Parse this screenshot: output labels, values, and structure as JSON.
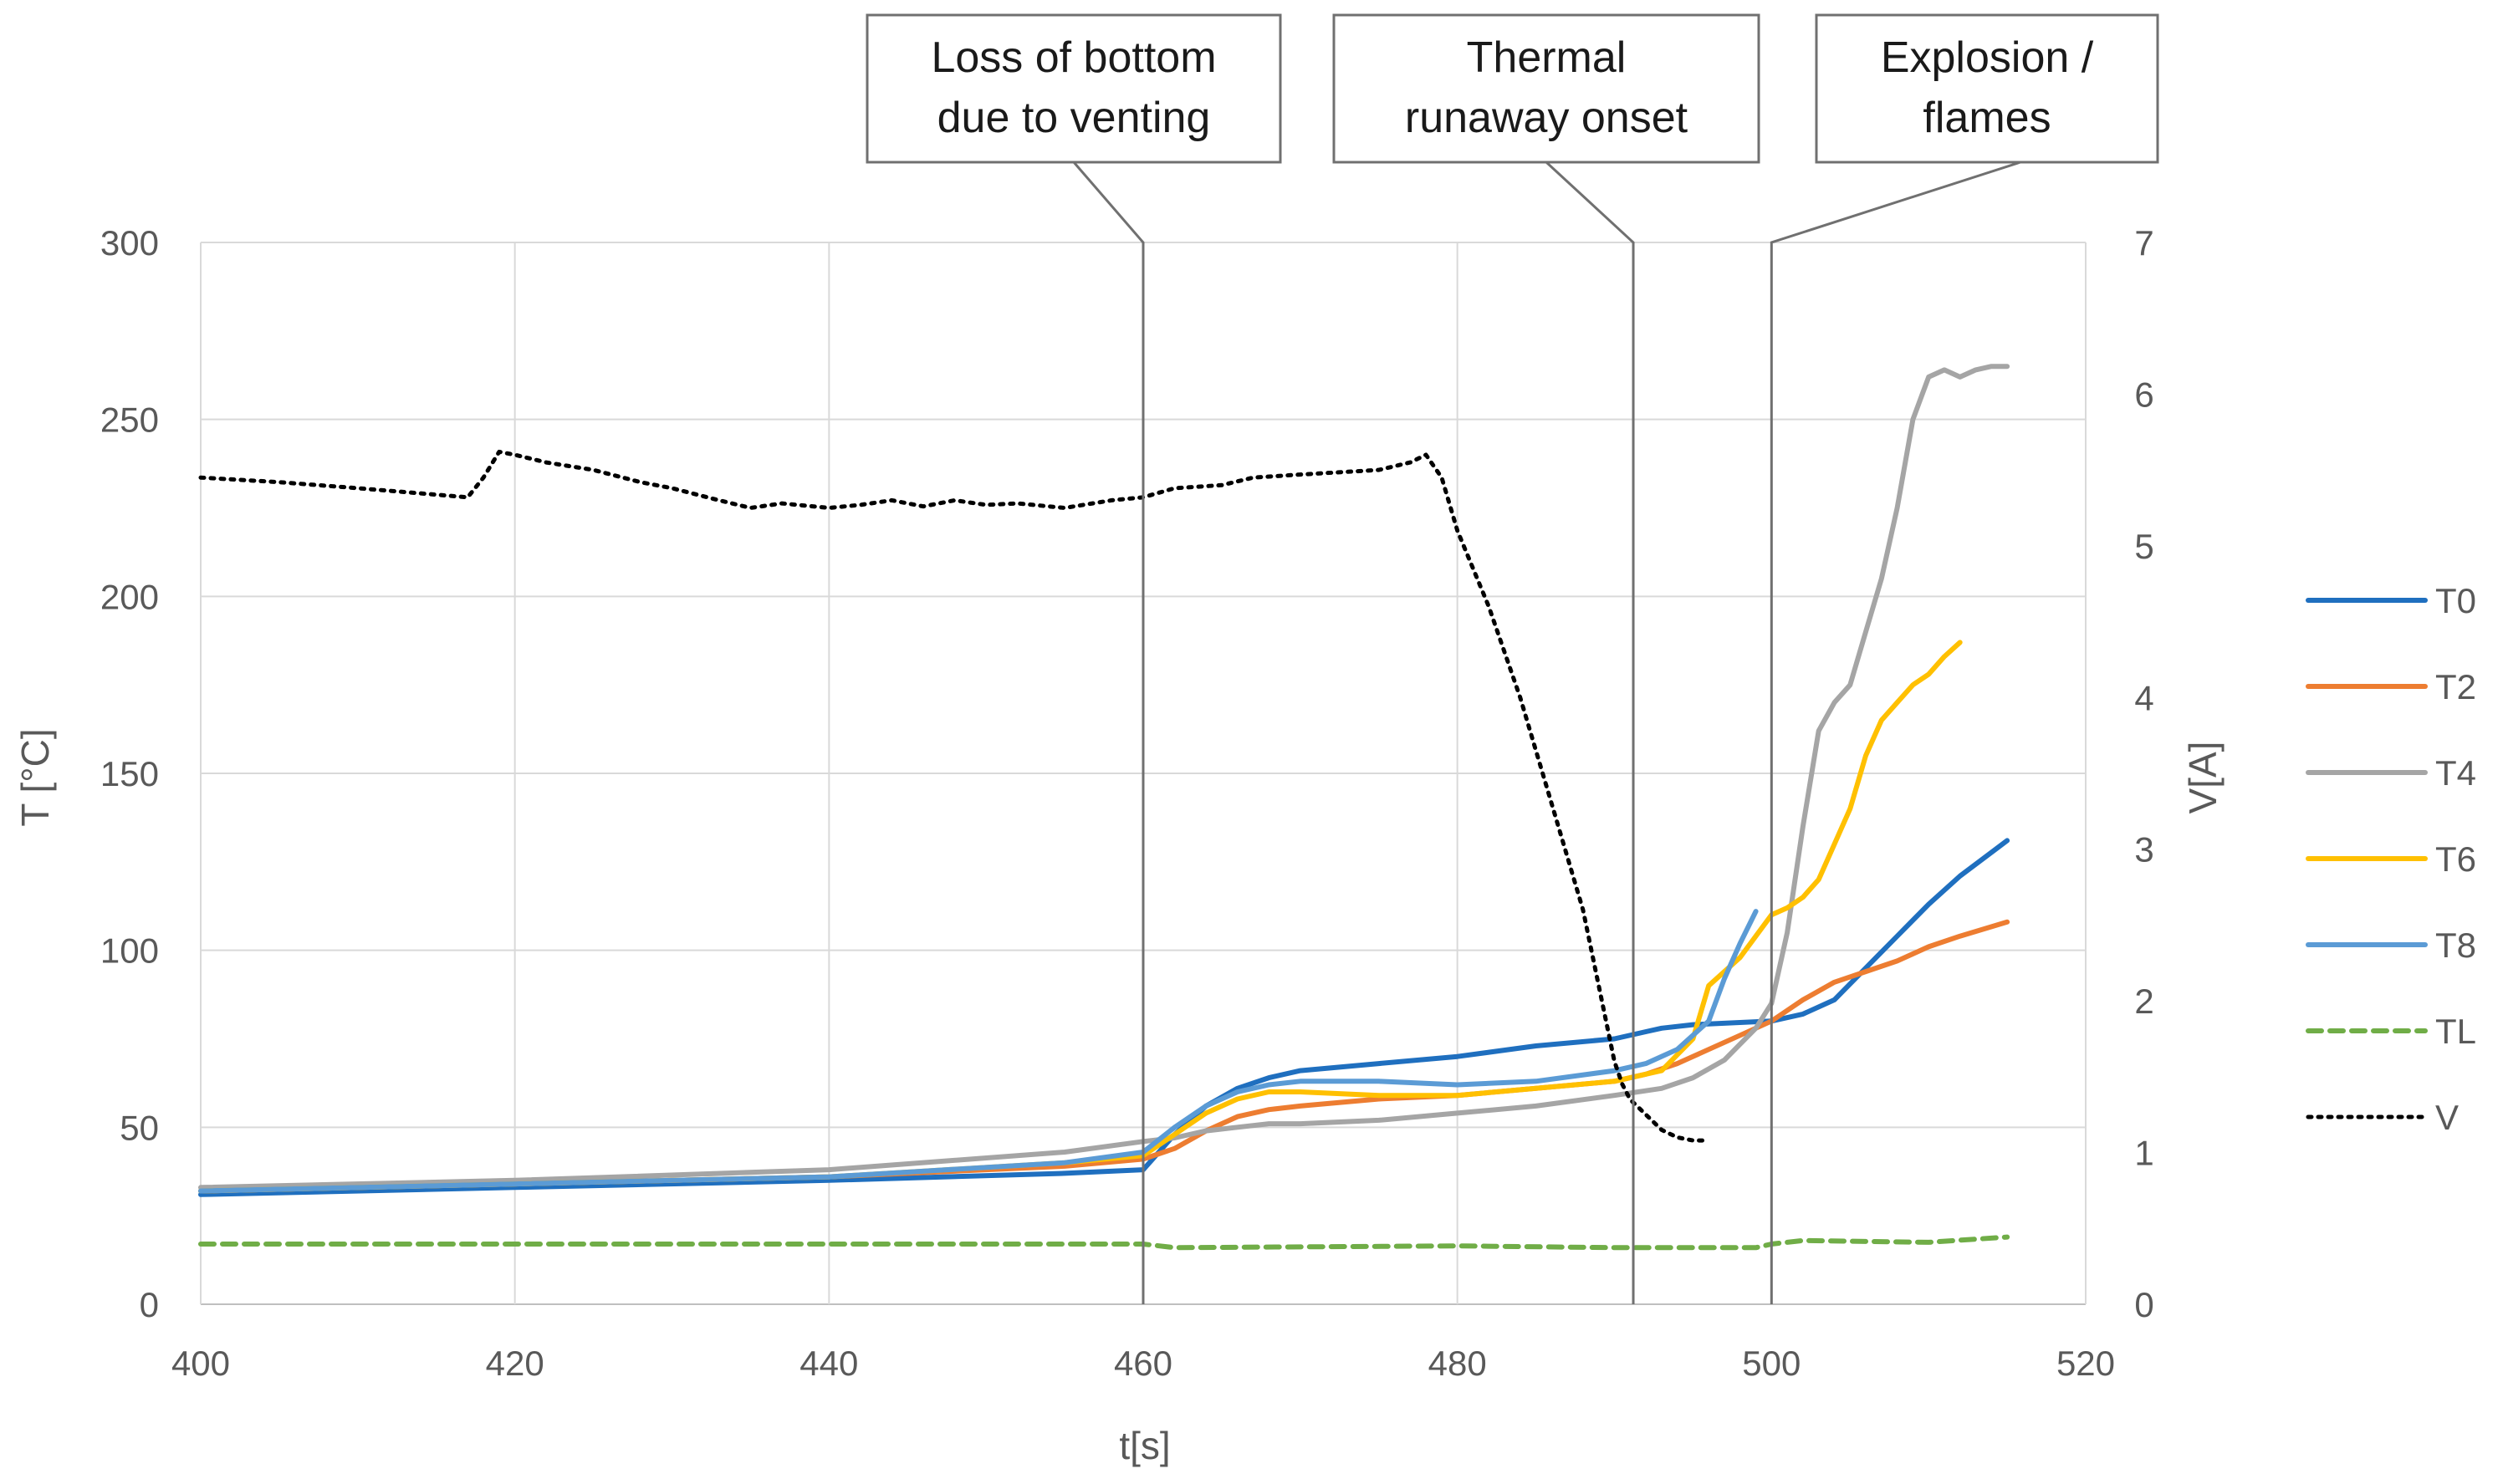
{
  "chart_data": {
    "type": "line",
    "xlabel": "t[s]",
    "ylabel": "T [°C]",
    "y2label": "V[A]",
    "xlim": [
      400,
      520
    ],
    "ylim": [
      0,
      300
    ],
    "y2lim": [
      0,
      7
    ],
    "xticks": [
      400,
      420,
      440,
      460,
      480,
      500,
      520
    ],
    "yticks": [
      0,
      50,
      100,
      150,
      200,
      250,
      300
    ],
    "y2ticks": [
      0,
      1,
      2,
      3,
      4,
      5,
      6,
      7
    ],
    "grid": true,
    "legend_position": "right",
    "series": [
      {
        "name": "T0",
        "axis": "left",
        "color": "#1f6fbf",
        "style": "solid",
        "x": [
          400,
          420,
          440,
          455,
          460,
          462,
          464,
          466,
          468,
          470,
          475,
          480,
          485,
          490,
          492,
          493,
          495,
          500,
          502,
          504,
          506,
          508,
          510,
          512,
          515
        ],
        "y": [
          31,
          33,
          35,
          37,
          38,
          48,
          56,
          61,
          64,
          66,
          68,
          70,
          73,
          75,
          77,
          78,
          79,
          80,
          82,
          86,
          95,
          104,
          113,
          121,
          131
        ]
      },
      {
        "name": "T2",
        "axis": "left",
        "color": "#ed7d31",
        "style": "solid",
        "x": [
          400,
          420,
          440,
          455,
          460,
          462,
          464,
          466,
          468,
          470,
          475,
          480,
          485,
          490,
          492,
          494,
          496,
          498,
          500,
          502,
          504,
          506,
          508,
          510,
          512,
          515
        ],
        "y": [
          32,
          34,
          36,
          39,
          41,
          44,
          49,
          53,
          55,
          56,
          58,
          59,
          61,
          63,
          65,
          68,
          72,
          76,
          80,
          86,
          91,
          94,
          97,
          101,
          104,
          108
        ]
      },
      {
        "name": "T4",
        "axis": "left",
        "color": "#a5a5a5",
        "style": "solid",
        "x": [
          400,
          420,
          440,
          455,
          460,
          462,
          464,
          466,
          468,
          470,
          475,
          480,
          485,
          490,
          493,
          495,
          497,
          499,
          500,
          501,
          502,
          503,
          504,
          505,
          506,
          507,
          508,
          509,
          510,
          511,
          512,
          513,
          514,
          515
        ],
        "y": [
          33,
          35,
          38,
          43,
          46,
          47,
          49,
          50,
          51,
          51,
          52,
          54,
          56,
          59,
          61,
          64,
          69,
          78,
          85,
          105,
          135,
          162,
          170,
          175,
          190,
          205,
          225,
          250,
          262,
          264,
          262,
          264,
          265,
          265
        ]
      },
      {
        "name": "T6",
        "axis": "left",
        "color": "#ffc000",
        "style": "solid",
        "x": [
          400,
          420,
          440,
          455,
          460,
          462,
          464,
          466,
          468,
          470,
          475,
          480,
          485,
          490,
          493,
          495,
          496,
          498,
          500,
          501,
          502,
          503,
          504,
          505,
          506,
          507,
          508,
          509,
          510,
          511,
          512
        ],
        "y": [
          32,
          34,
          36,
          40,
          42,
          48,
          54,
          58,
          60,
          60,
          59,
          59,
          61,
          63,
          66,
          75,
          90,
          98,
          110,
          112,
          115,
          120,
          130,
          140,
          155,
          165,
          170,
          175,
          178,
          183,
          187
        ]
      },
      {
        "name": "T8",
        "axis": "left",
        "color": "#5b9bd5",
        "style": "solid",
        "x": [
          400,
          420,
          440,
          455,
          460,
          462,
          464,
          466,
          468,
          470,
          475,
          480,
          485,
          490,
          492,
          494,
          496,
          497,
          498,
          499
        ],
        "y": [
          32,
          34,
          36,
          40,
          43,
          50,
          56,
          60,
          62,
          63,
          63,
          62,
          63,
          66,
          68,
          72,
          80,
          92,
          102,
          111
        ]
      },
      {
        "name": "TL",
        "axis": "left",
        "color": "#70ad47",
        "style": "dashed",
        "x": [
          400,
          420,
          440,
          460,
          462,
          480,
          490,
          499,
          500,
          502,
          510,
          515
        ],
        "y": [
          17,
          17,
          17,
          17,
          16,
          16.5,
          16,
          16,
          17,
          18,
          17.5,
          19
        ]
      },
      {
        "name": "V",
        "axis": "right",
        "color": "#000000",
        "style": "dotted",
        "x": [
          400,
          405,
          410,
          417,
          418,
          419,
          420,
          422,
          425,
          428,
          430,
          433,
          435,
          437,
          440,
          442,
          444,
          446,
          448,
          450,
          452,
          455,
          458,
          460,
          462,
          465,
          467,
          470,
          475,
          477,
          478,
          479,
          480,
          482,
          484,
          486,
          488,
          489,
          490,
          490.5,
          491,
          492,
          493,
          494,
          495,
          496
        ],
        "y": [
          5.45,
          5.42,
          5.38,
          5.32,
          5.45,
          5.62,
          5.6,
          5.55,
          5.5,
          5.42,
          5.38,
          5.3,
          5.25,
          5.28,
          5.25,
          5.27,
          5.3,
          5.26,
          5.3,
          5.27,
          5.28,
          5.25,
          5.3,
          5.32,
          5.38,
          5.4,
          5.45,
          5.47,
          5.5,
          5.55,
          5.6,
          5.45,
          5.1,
          4.6,
          4.0,
          3.3,
          2.6,
          2.1,
          1.6,
          1.45,
          1.35,
          1.25,
          1.15,
          1.1,
          1.08,
          1.08
        ]
      }
    ],
    "annotations": [
      {
        "line1": "Loss of bottom",
        "line2": "due to venting",
        "x": 460
      },
      {
        "line1": "Thermal",
        "line2": "runaway onset",
        "x": 491.2
      },
      {
        "line1": "Explosion /",
        "line2": "flames",
        "x": 500
      }
    ]
  }
}
